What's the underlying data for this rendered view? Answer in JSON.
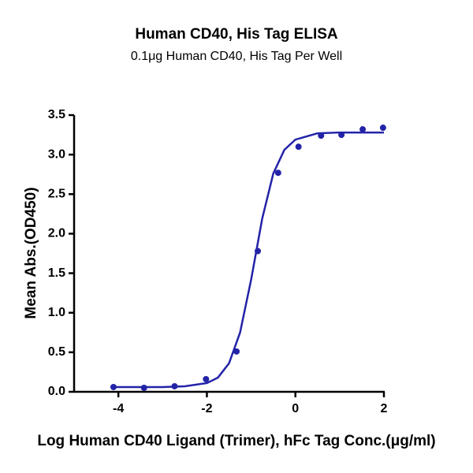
{
  "chart_data": {
    "type": "scatter",
    "title": "Human CD40, His Tag ELISA",
    "subtitle": "0.1μg Human CD40, His Tag Per Well",
    "x_label": "Log Human CD40 Ligand (Trimer), hFc Tag Conc.(μg/ml)",
    "y_label": "Mean Abs.(OD450)",
    "color": "#2323a8",
    "x": [
      -4.11,
      -3.42,
      -2.73,
      -2.02,
      -1.33,
      -0.85,
      -0.39,
      0.07,
      0.58,
      1.04,
      1.52,
      1.98
    ],
    "values": [
      0.06,
      0.05,
      0.07,
      0.16,
      0.51,
      1.78,
      2.77,
      3.1,
      3.24,
      3.25,
      3.32,
      3.34
    ],
    "curve": {
      "x": [
        -4.1,
        -3.5,
        -3,
        -2.5,
        -2,
        -1.75,
        -1.5,
        -1.25,
        -1,
        -0.75,
        -0.5,
        -0.25,
        0,
        0.5,
        1,
        1.5,
        2
      ],
      "values": [
        0.06,
        0.06,
        0.06,
        0.07,
        0.11,
        0.18,
        0.36,
        0.75,
        1.42,
        2.19,
        2.76,
        3.06,
        3.19,
        3.27,
        3.28,
        3.28,
        3.28
      ]
    },
    "xlim": [
      -5,
      2
    ],
    "xticks": [
      -4,
      -2,
      0,
      2
    ],
    "ylim": [
      0,
      3.5
    ],
    "yticks": [
      {
        "value": 0,
        "label": "0.0"
      },
      0.5,
      {
        "value": 1,
        "label": "1.0"
      },
      1.5,
      {
        "value": 2,
        "label": "2.0"
      },
      2.5,
      {
        "value": 3,
        "label": "3.0"
      },
      3.5
    ]
  }
}
